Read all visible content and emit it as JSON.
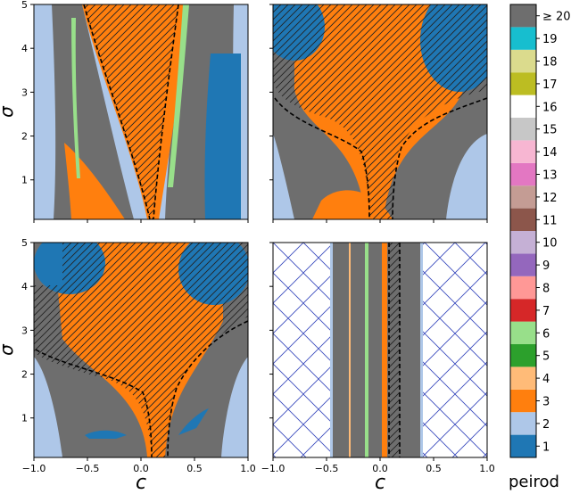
{
  "chart_data": {
    "type": "heatmap",
    "panels": [
      {
        "id": "top-left",
        "xlim": [
          -1.0,
          1.0
        ],
        "ylim": [
          0.1,
          5.0
        ],
        "ylabel": "σ",
        "xlabel": "",
        "yticks": [
          "1",
          "2",
          "3",
          "4",
          "5"
        ],
        "xticks": []
      },
      {
        "id": "top-right",
        "xlim": [
          -1.0,
          1.0
        ],
        "ylim": [
          0.1,
          5.0
        ],
        "ylabel": "",
        "xlabel": "",
        "yticks": [],
        "xticks": []
      },
      {
        "id": "bottom-left",
        "xlim": [
          -1.0,
          1.0
        ],
        "ylim": [
          0.1,
          5.0
        ],
        "ylabel": "σ",
        "xlabel": "c",
        "yticks": [
          "1",
          "2",
          "3",
          "4",
          "5"
        ],
        "xticks": [
          "−1.0",
          "−0.5",
          "0.0",
          "0.5",
          "1.0"
        ]
      },
      {
        "id": "bottom-right",
        "xlim": [
          -1.0,
          1.0
        ],
        "ylim": [
          0.1,
          5.0
        ],
        "ylabel": "",
        "xlabel": "c",
        "yticks": [],
        "xticks": [
          "−1.0",
          "−0.5",
          "0.0",
          "0.5",
          "1.0"
        ]
      }
    ],
    "colorbar": {
      "label": "peirod",
      "levels": [
        "1",
        "2",
        "3",
        "4",
        "5",
        "6",
        "7",
        "8",
        "9",
        "10",
        "11",
        "12",
        "13",
        "14",
        "15",
        "16",
        "17",
        "18",
        "19",
        "≥ 20"
      ],
      "colors": [
        "#1f77b4",
        "#aec7e8",
        "#ff7f0e",
        "#ffbb78",
        "#2ca02c",
        "#98df8a",
        "#d62728",
        "#ff9896",
        "#9467bd",
        "#c5b0d5",
        "#8c564b",
        "#c49c94",
        "#e377c2",
        "#f7b6d2",
        "#c7c7c7",
        "#ffffff",
        "#bcbd22",
        "#dbdb8d",
        "#17becf",
        "#6e6e6e"
      ]
    },
    "legend": "right (colorbar)",
    "grid": false
  }
}
